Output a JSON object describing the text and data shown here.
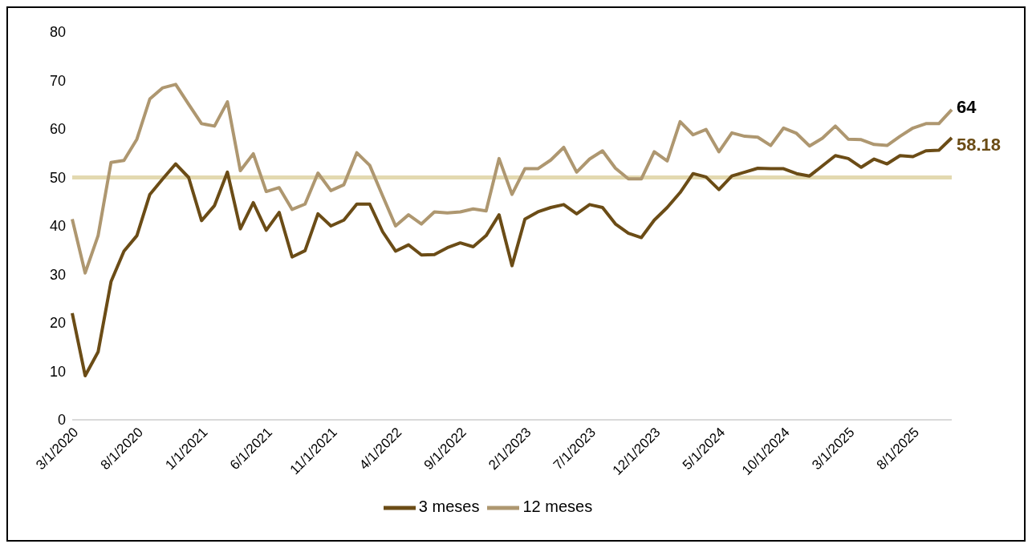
{
  "chart_data": {
    "type": "line",
    "categories": [
      "3/1/2020",
      null,
      null,
      null,
      null,
      "8/1/2020",
      null,
      null,
      null,
      null,
      "1/1/2021",
      null,
      null,
      null,
      null,
      "6/1/2021",
      null,
      null,
      null,
      null,
      "11/1/2021",
      null,
      null,
      null,
      null,
      "4/1/2022",
      null,
      null,
      null,
      null,
      "9/1/2022",
      null,
      null,
      null,
      null,
      "2/1/2023",
      null,
      null,
      null,
      null,
      "7/1/2023",
      null,
      null,
      null,
      null,
      "12/1/2023",
      null,
      null,
      null,
      null,
      "5/1/2024",
      null,
      null,
      null,
      null,
      "10/1/2024",
      null,
      null,
      null,
      null,
      "3/1/2025",
      null,
      null,
      null,
      null,
      "8/1/2025",
      null,
      null,
      null
    ],
    "series": [
      {
        "name": "3 meses",
        "color": "#6b4c16",
        "values": [
          22.0,
          9.1,
          14.0,
          28.5,
          34.8,
          38.0,
          46.5,
          49.7,
          52.8,
          50.0,
          41.1,
          44.2,
          51.1,
          39.4,
          44.8,
          39.1,
          42.8,
          33.6,
          34.9,
          42.5,
          40.0,
          41.2,
          44.5,
          44.5,
          38.8,
          34.8,
          36.1,
          34.0,
          34.1,
          35.5,
          36.5,
          35.7,
          38.0,
          42.3,
          31.8,
          41.4,
          42.9,
          43.8,
          44.4,
          42.5,
          44.4,
          43.8,
          40.4,
          38.5,
          37.6,
          41.2,
          43.8,
          46.9,
          50.8,
          50.1,
          47.5,
          50.3,
          51.1,
          51.9,
          51.8,
          51.8,
          50.8,
          50.3,
          52.4,
          54.5,
          53.9,
          52.1,
          53.8,
          52.8,
          54.5,
          54.3,
          55.5,
          55.6,
          58.18
        ],
        "value_labels": [
          null,
          null,
          null,
          null,
          null,
          null,
          null,
          null,
          null,
          null,
          null,
          null,
          null,
          null,
          null,
          null,
          null,
          null,
          null,
          null,
          null,
          null,
          null,
          null,
          null,
          null,
          null,
          null,
          null,
          null,
          null,
          null,
          null,
          null,
          null,
          null,
          null,
          null,
          null,
          null,
          null,
          null,
          null,
          null,
          null,
          null,
          null,
          null,
          null,
          null,
          null,
          null,
          null,
          null,
          null,
          null,
          null,
          null,
          null,
          null,
          null,
          null,
          null,
          null,
          null,
          null,
          null,
          null,
          "58.18"
        ]
      },
      {
        "name": "12 meses",
        "color": "#ae9770",
        "values": [
          41.4,
          30.3,
          38.0,
          53.1,
          53.5,
          57.9,
          66.2,
          68.5,
          69.2,
          65.1,
          61.1,
          60.6,
          65.6,
          51.4,
          54.9,
          47.1,
          47.9,
          43.4,
          44.5,
          50.9,
          47.3,
          48.5,
          55.1,
          52.5,
          46.2,
          40.0,
          42.3,
          40.4,
          42.9,
          42.7,
          42.9,
          43.5,
          43.1,
          53.9,
          46.5,
          51.8,
          51.8,
          53.6,
          56.2,
          51.1,
          53.8,
          55.5,
          51.9,
          49.7,
          49.7,
          55.3,
          53.4,
          61.5,
          58.8,
          59.9,
          55.3,
          59.2,
          58.5,
          58.3,
          56.6,
          60.2,
          59.1,
          56.5,
          58.1,
          60.6,
          57.9,
          57.8,
          56.8,
          56.6,
          58.5,
          60.2,
          61.1,
          61.1,
          64
        ],
        "value_labels": [
          null,
          null,
          null,
          null,
          null,
          null,
          null,
          null,
          null,
          null,
          null,
          null,
          null,
          null,
          null,
          null,
          null,
          null,
          null,
          null,
          null,
          null,
          null,
          null,
          null,
          null,
          null,
          null,
          null,
          null,
          null,
          null,
          null,
          null,
          null,
          null,
          null,
          null,
          null,
          null,
          null,
          null,
          null,
          null,
          null,
          null,
          null,
          null,
          null,
          null,
          null,
          null,
          null,
          null,
          null,
          null,
          null,
          null,
          null,
          null,
          null,
          null,
          null,
          null,
          null,
          null,
          null,
          null,
          "64"
        ]
      }
    ],
    "ylim": [
      0,
      80
    ],
    "yticks": [
      0,
      10,
      20,
      30,
      40,
      50,
      60,
      70,
      80
    ],
    "ref_lines": [
      {
        "axis": "y",
        "value": 50,
        "color": "#e3d9b0"
      }
    ],
    "grid": false,
    "legend": "bottom",
    "marker": "none",
    "line_style": "solid"
  }
}
